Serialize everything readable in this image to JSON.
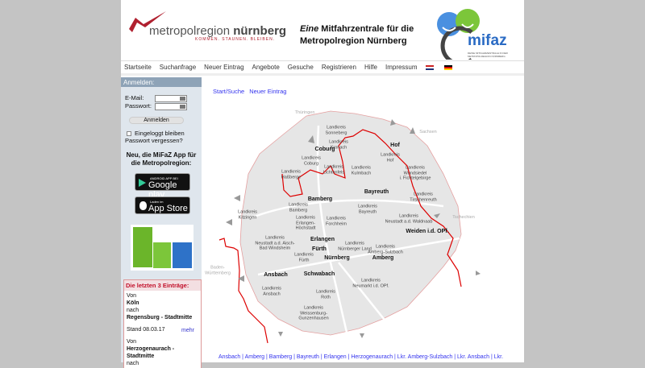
{
  "header": {
    "logo_name_light": "metropolregion ",
    "logo_name_bold": "nürnberg",
    "logo_slogan": "KOMMEN. STAUNEN. BLEIBEN.",
    "tagline_italic": "Eine",
    "tagline_rest": " Mitfahrzentrale für die",
    "tagline_line2": "Metropolregion Nürnberg",
    "mifaz_logo": "mifaz",
    "mifaz_sub": "DEINE MITFAHRZENTRALE IN DER METROPOLREGION NÜRNBERG"
  },
  "nav": [
    "Startseite",
    "Suchanfrage",
    "Neuer Eintrag",
    "Angebote",
    "Gesuche",
    "Registrieren",
    "Hilfe",
    "Impressum"
  ],
  "login": {
    "title": "Anmelden:",
    "email_label": "E-Mail:",
    "password_label": "Passwort:",
    "email_value": "",
    "password_value": "",
    "button": "Anmelden",
    "remember": "Eingeloggt bleiben",
    "forgot": "Passwort vergessen?"
  },
  "app": {
    "heading": "Neu, die MiFaZ App für die Metropolregion:",
    "google_small": "ANDROID APP BEI",
    "google_big": "Google play",
    "apple_small": "Laden im",
    "apple_big": "App Store"
  },
  "last": {
    "title": "Die letzten 3 Einträge:",
    "entries": [
      {
        "von": "Von",
        "from": "Köln",
        "nach": "nach",
        "to": "Regensburg - Stadtmitte",
        "stand": "Stand 08.03.17",
        "more": "mehr"
      },
      {
        "von": "Von",
        "from": "Herzogenaurach - Stadtmitte",
        "nach": "nach"
      }
    ]
  },
  "breadcrumb": [
    "Start/Suche",
    "Neuer Eintrag"
  ],
  "map": {
    "labels": [
      "Thüringen",
      "Sachsen",
      "Tschechien",
      "Baden-\nWürttemberg",
      "Landkreis\nSonneberg",
      "Landkreis\nKronach",
      "Coburg",
      "Landkreis\nCoburg",
      "Landkreis\nHaßberge",
      "Landkreis\nLichtenfels",
      "Landkreis\nKulmbach",
      "Hof",
      "Landkreis\nHof",
      "Landkreis\nWundsiedel\ni. Fichtelgebirge",
      "Bayreuth",
      "Landkreis\nBayreuth",
      "Landkreis\nTirschenreuth",
      "Bamberg",
      "Landkreis\nBamberg",
      "Landkreis\nKitzingen",
      "Landkreis\nForchheim",
      "Landkreis\nErlangen-\nHöchstadt",
      "Landkreis\nNeustadt a.d. Waldnaab",
      "Weiden i.d. OPf.",
      "Landkreis\nNeustadt a.d. Aisch-\nBad Windsheim",
      "Erlangen",
      "Landkreis\nNürnberger Land",
      "Landkreis\nAmberg-Sulzbach",
      "Fürth",
      "Nürnberg",
      "Amberg",
      "Landkreis\nFürth",
      "Ansbach",
      "Schwabach",
      "Landkreis\nNeumarkt i.d. OPf.",
      "Landkreis\nAnsbach",
      "Landkreis\nRoth",
      "Landkreis\nWeissenburg-\nGunzenhausen"
    ]
  },
  "footer_links": "Ansbach | Amberg | Bamberg | Bayreuth | Erlangen | Herzogenaurach | Lkr. Amberg-Sulzbach | Lkr. Ansbach | Lkr.",
  "colors": {
    "sidebar_header": "#8ea3b7",
    "sidebar_bg": "#dfe6ed",
    "link": "#3333ee",
    "border_red": "#dd0000",
    "accent_red": "#c2102a"
  }
}
